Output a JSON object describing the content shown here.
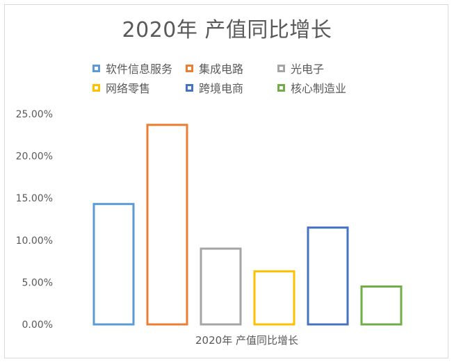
{
  "chart_data": {
    "type": "bar",
    "title": "2020年 产值同比增长",
    "categories": [
      "2020年 产值同比增长"
    ],
    "series": [
      {
        "name": "软件信息服务",
        "values": [
          0.143
        ],
        "color": "#5b9bd5"
      },
      {
        "name": "集成电路",
        "values": [
          0.237
        ],
        "color": "#ed7d31"
      },
      {
        "name": "光电子",
        "values": [
          0.09
        ],
        "color": "#a5a5a5"
      },
      {
        "name": "网络零售",
        "values": [
          0.063
        ],
        "color": "#ffc000"
      },
      {
        "name": "跨境电商",
        "values": [
          0.115
        ],
        "color": "#4472c4"
      },
      {
        "name": "核心制造业",
        "values": [
          0.045
        ],
        "color": "#70ad47"
      }
    ],
    "ylim": [
      0,
      0.25
    ],
    "yticks": [
      "0.00%",
      "5.00%",
      "10.00%",
      "15.00%",
      "20.00%",
      "25.00%"
    ],
    "legend_position": "top",
    "grid": false,
    "bar_style": "outline"
  }
}
